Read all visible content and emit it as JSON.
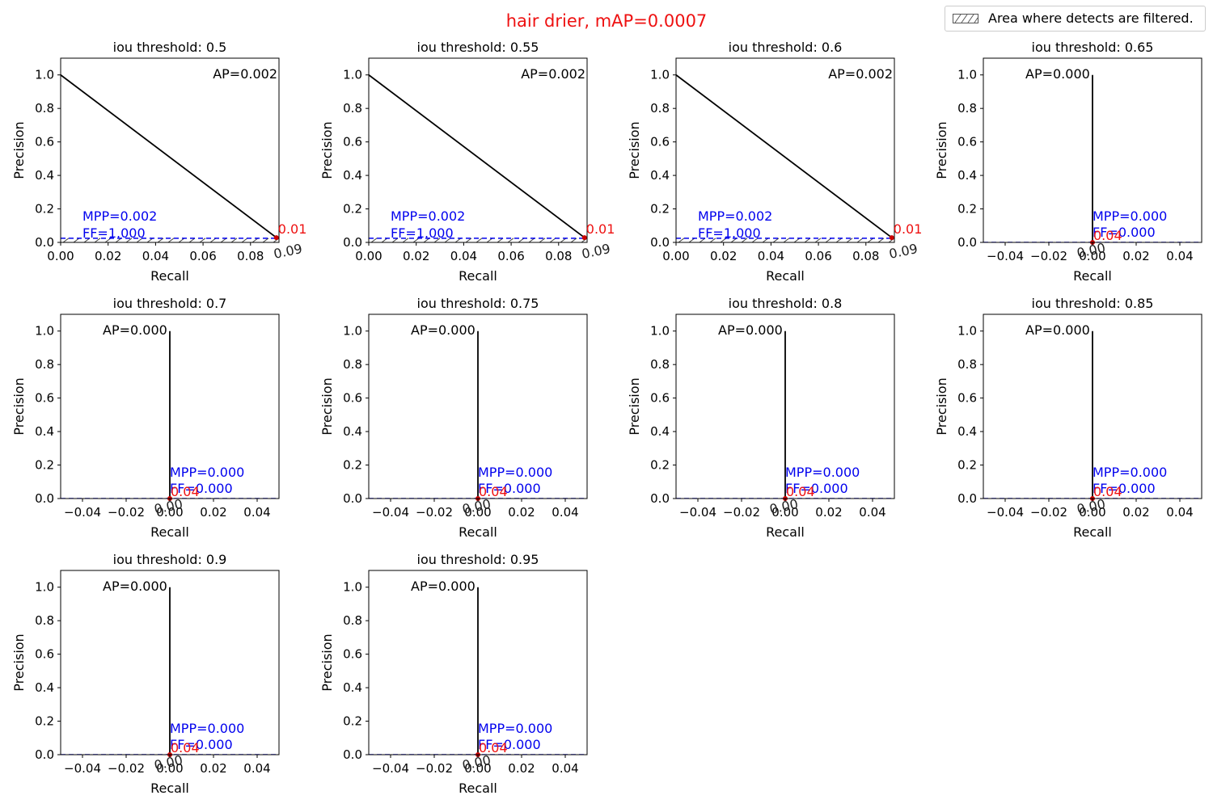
{
  "suptitle": "hair drier, mAP=0.0007",
  "suptitle_color": "#ee1111",
  "legend": {
    "label": "Area where detects are filtered.",
    "icon": "hatched-box-icon"
  },
  "colors": {
    "curve": "#000000",
    "threshold": "#0000ee",
    "score_label": "#ee1111",
    "recall_label": "#222222",
    "text": "#000000"
  },
  "chart_data": [
    {
      "type": "line",
      "title": "iou threshold: 0.5",
      "xlabel": "Recall",
      "ylabel": "Precision",
      "xlim": [
        0,
        0.092
      ],
      "ylim": [
        0,
        1.1
      ],
      "xticks": [
        0,
        0.02,
        0.04,
        0.06,
        0.08
      ],
      "xtick_labels": [
        "0.00",
        "0.02",
        "0.04",
        "0.06",
        "0.08"
      ],
      "yticks": [
        0,
        0.2,
        0.4,
        0.6,
        0.8,
        1.0
      ],
      "ytick_labels": [
        "0.0",
        "0.2",
        "0.4",
        "0.6",
        "0.8",
        "1.0"
      ],
      "x": [
        0,
        0.0909
      ],
      "y": [
        1.0,
        0.0286
      ],
      "ap_text": "AP=0.002",
      "mpp_text": "MPP=0.002",
      "ff_text": "FF=1.000",
      "threshold_y": 0.025,
      "filtered_region": [
        0,
        0.025
      ],
      "marker": {
        "x": 0.0909,
        "y": 0.0286
      },
      "score_label": "0.01",
      "recall_label": "0.09"
    },
    {
      "type": "line",
      "title": "iou threshold: 0.55",
      "xlabel": "Recall",
      "ylabel": "Precision",
      "xlim": [
        0,
        0.092
      ],
      "ylim": [
        0,
        1.1
      ],
      "xticks": [
        0,
        0.02,
        0.04,
        0.06,
        0.08
      ],
      "xtick_labels": [
        "0.00",
        "0.02",
        "0.04",
        "0.06",
        "0.08"
      ],
      "yticks": [
        0,
        0.2,
        0.4,
        0.6,
        0.8,
        1.0
      ],
      "ytick_labels": [
        "0.0",
        "0.2",
        "0.4",
        "0.6",
        "0.8",
        "1.0"
      ],
      "x": [
        0,
        0.0909
      ],
      "y": [
        1.0,
        0.0286
      ],
      "ap_text": "AP=0.002",
      "mpp_text": "MPP=0.002",
      "ff_text": "FF=1.000",
      "threshold_y": 0.025,
      "filtered_region": [
        0,
        0.025
      ],
      "marker": {
        "x": 0.0909,
        "y": 0.0286
      },
      "score_label": "0.01",
      "recall_label": "0.09"
    },
    {
      "type": "line",
      "title": "iou threshold: 0.6",
      "xlabel": "Recall",
      "ylabel": "Precision",
      "xlim": [
        0,
        0.092
      ],
      "ylim": [
        0,
        1.1
      ],
      "xticks": [
        0,
        0.02,
        0.04,
        0.06,
        0.08
      ],
      "xtick_labels": [
        "0.00",
        "0.02",
        "0.04",
        "0.06",
        "0.08"
      ],
      "yticks": [
        0,
        0.2,
        0.4,
        0.6,
        0.8,
        1.0
      ],
      "ytick_labels": [
        "0.0",
        "0.2",
        "0.4",
        "0.6",
        "0.8",
        "1.0"
      ],
      "x": [
        0,
        0.0909
      ],
      "y": [
        1.0,
        0.0286
      ],
      "ap_text": "AP=0.002",
      "mpp_text": "MPP=0.002",
      "ff_text": "FF=1.000",
      "threshold_y": 0.025,
      "filtered_region": [
        0,
        0.025
      ],
      "marker": {
        "x": 0.0909,
        "y": 0.0286
      },
      "score_label": "0.01",
      "recall_label": "0.09"
    },
    {
      "type": "line",
      "title": "iou threshold: 0.65",
      "xlabel": "Recall",
      "ylabel": "Precision",
      "xlim": [
        -0.05,
        0.05
      ],
      "ylim": [
        0,
        1.1
      ],
      "xticks": [
        -0.04,
        -0.02,
        0,
        0.02,
        0.04
      ],
      "xtick_labels": [
        "−0.04",
        "−0.02",
        "0.00",
        "0.02",
        "0.04"
      ],
      "yticks": [
        0,
        0.2,
        0.4,
        0.6,
        0.8,
        1.0
      ],
      "ytick_labels": [
        "0.0",
        "0.2",
        "0.4",
        "0.6",
        "0.8",
        "1.0"
      ],
      "x": [
        0,
        0
      ],
      "y": [
        1.0,
        0.0
      ],
      "ap_text": "AP=0.000",
      "mpp_text": "MPP=0.000",
      "ff_text": "FF=0.000",
      "threshold_y": 0.0,
      "filtered_region": [
        0,
        0
      ],
      "marker": {
        "x": 0,
        "y": 0
      },
      "score_label": "0.04",
      "recall_label": "0.00"
    },
    {
      "type": "line",
      "title": "iou threshold: 0.7",
      "xlabel": "Recall",
      "ylabel": "Precision",
      "xlim": [
        -0.05,
        0.05
      ],
      "ylim": [
        0,
        1.1
      ],
      "xticks": [
        -0.04,
        -0.02,
        0,
        0.02,
        0.04
      ],
      "xtick_labels": [
        "−0.04",
        "−0.02",
        "0.00",
        "0.02",
        "0.04"
      ],
      "yticks": [
        0,
        0.2,
        0.4,
        0.6,
        0.8,
        1.0
      ],
      "ytick_labels": [
        "0.0",
        "0.2",
        "0.4",
        "0.6",
        "0.8",
        "1.0"
      ],
      "x": [
        0,
        0
      ],
      "y": [
        1.0,
        0.0
      ],
      "ap_text": "AP=0.000",
      "mpp_text": "MPP=0.000",
      "ff_text": "FF=0.000",
      "threshold_y": 0.0,
      "filtered_region": [
        0,
        0
      ],
      "marker": {
        "x": 0,
        "y": 0
      },
      "score_label": "0.04",
      "recall_label": "0.00"
    },
    {
      "type": "line",
      "title": "iou threshold: 0.75",
      "xlabel": "Recall",
      "ylabel": "Precision",
      "xlim": [
        -0.05,
        0.05
      ],
      "ylim": [
        0,
        1.1
      ],
      "xticks": [
        -0.04,
        -0.02,
        0,
        0.02,
        0.04
      ],
      "xtick_labels": [
        "−0.04",
        "−0.02",
        "0.00",
        "0.02",
        "0.04"
      ],
      "yticks": [
        0,
        0.2,
        0.4,
        0.6,
        0.8,
        1.0
      ],
      "ytick_labels": [
        "0.0",
        "0.2",
        "0.4",
        "0.6",
        "0.8",
        "1.0"
      ],
      "x": [
        0,
        0
      ],
      "y": [
        1.0,
        0.0
      ],
      "ap_text": "AP=0.000",
      "mpp_text": "MPP=0.000",
      "ff_text": "FF=0.000",
      "threshold_y": 0.0,
      "filtered_region": [
        0,
        0
      ],
      "marker": {
        "x": 0,
        "y": 0
      },
      "score_label": "0.04",
      "recall_label": "0.00"
    },
    {
      "type": "line",
      "title": "iou threshold: 0.8",
      "xlabel": "Recall",
      "ylabel": "Precision",
      "xlim": [
        -0.05,
        0.05
      ],
      "ylim": [
        0,
        1.1
      ],
      "xticks": [
        -0.04,
        -0.02,
        0,
        0.02,
        0.04
      ],
      "xtick_labels": [
        "−0.04",
        "−0.02",
        "0.00",
        "0.02",
        "0.04"
      ],
      "yticks": [
        0,
        0.2,
        0.4,
        0.6,
        0.8,
        1.0
      ],
      "ytick_labels": [
        "0.0",
        "0.2",
        "0.4",
        "0.6",
        "0.8",
        "1.0"
      ],
      "x": [
        0,
        0
      ],
      "y": [
        1.0,
        0.0
      ],
      "ap_text": "AP=0.000",
      "mpp_text": "MPP=0.000",
      "ff_text": "FF=0.000",
      "threshold_y": 0.0,
      "filtered_region": [
        0,
        0
      ],
      "marker": {
        "x": 0,
        "y": 0
      },
      "score_label": "0.04",
      "recall_label": "0.00"
    },
    {
      "type": "line",
      "title": "iou threshold: 0.85",
      "xlabel": "Recall",
      "ylabel": "Precision",
      "xlim": [
        -0.05,
        0.05
      ],
      "ylim": [
        0,
        1.1
      ],
      "xticks": [
        -0.04,
        -0.02,
        0,
        0.02,
        0.04
      ],
      "xtick_labels": [
        "−0.04",
        "−0.02",
        "0.00",
        "0.02",
        "0.04"
      ],
      "yticks": [
        0,
        0.2,
        0.4,
        0.6,
        0.8,
        1.0
      ],
      "ytick_labels": [
        "0.0",
        "0.2",
        "0.4",
        "0.6",
        "0.8",
        "1.0"
      ],
      "x": [
        0,
        0
      ],
      "y": [
        1.0,
        0.0
      ],
      "ap_text": "AP=0.000",
      "mpp_text": "MPP=0.000",
      "ff_text": "FF=0.000",
      "threshold_y": 0.0,
      "filtered_region": [
        0,
        0
      ],
      "marker": {
        "x": 0,
        "y": 0
      },
      "score_label": "0.04",
      "recall_label": "0.00"
    },
    {
      "type": "line",
      "title": "iou threshold: 0.9",
      "xlabel": "Recall",
      "ylabel": "Precision",
      "xlim": [
        -0.05,
        0.05
      ],
      "ylim": [
        0,
        1.1
      ],
      "xticks": [
        -0.04,
        -0.02,
        0,
        0.02,
        0.04
      ],
      "xtick_labels": [
        "−0.04",
        "−0.02",
        "0.00",
        "0.02",
        "0.04"
      ],
      "yticks": [
        0,
        0.2,
        0.4,
        0.6,
        0.8,
        1.0
      ],
      "ytick_labels": [
        "0.0",
        "0.2",
        "0.4",
        "0.6",
        "0.8",
        "1.0"
      ],
      "x": [
        0,
        0
      ],
      "y": [
        1.0,
        0.0
      ],
      "ap_text": "AP=0.000",
      "mpp_text": "MPP=0.000",
      "ff_text": "FF=0.000",
      "threshold_y": 0.0,
      "filtered_region": [
        0,
        0
      ],
      "marker": {
        "x": 0,
        "y": 0
      },
      "score_label": "0.04",
      "recall_label": "0.00"
    },
    {
      "type": "line",
      "title": "iou threshold: 0.95",
      "xlabel": "Recall",
      "ylabel": "Precision",
      "xlim": [
        -0.05,
        0.05
      ],
      "ylim": [
        0,
        1.1
      ],
      "xticks": [
        -0.04,
        -0.02,
        0,
        0.02,
        0.04
      ],
      "xtick_labels": [
        "−0.04",
        "−0.02",
        "0.00",
        "0.02",
        "0.04"
      ],
      "yticks": [
        0,
        0.2,
        0.4,
        0.6,
        0.8,
        1.0
      ],
      "ytick_labels": [
        "0.0",
        "0.2",
        "0.4",
        "0.6",
        "0.8",
        "1.0"
      ],
      "x": [
        0,
        0
      ],
      "y": [
        1.0,
        0.0
      ],
      "ap_text": "AP=0.000",
      "mpp_text": "MPP=0.000",
      "ff_text": "FF=0.000",
      "threshold_y": 0.0,
      "filtered_region": [
        0,
        0
      ],
      "marker": {
        "x": 0,
        "y": 0
      },
      "score_label": "0.04",
      "recall_label": "0.00"
    }
  ]
}
